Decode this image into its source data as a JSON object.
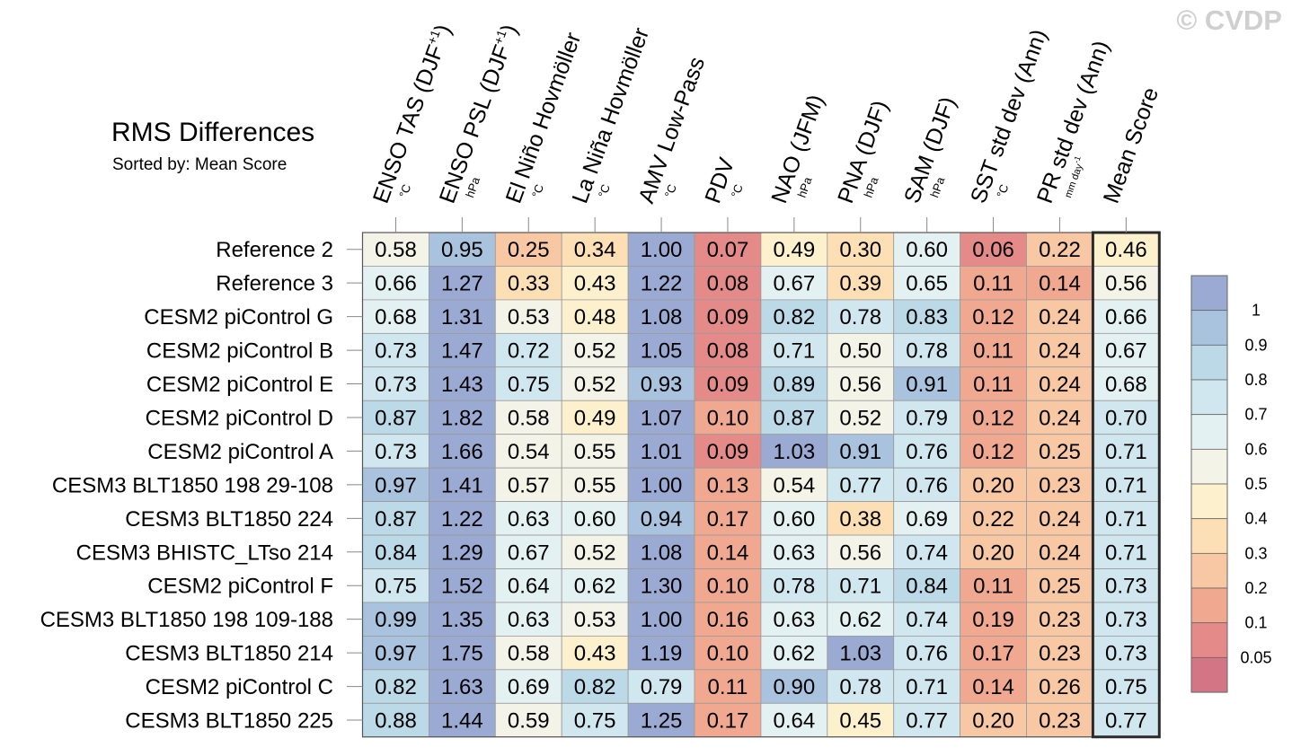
{
  "title": "RMS Differences",
  "subtitle": "Sorted by: Mean Score",
  "watermark": "© CVDP",
  "chart_data": {
    "type": "heatmap",
    "title": "RMS Differences",
    "sort_note": "Sorted by: Mean Score",
    "columns": [
      {
        "label": "ENSO TAS (DJF",
        "sup": "+1",
        "close": ")",
        "unit": "°C"
      },
      {
        "label": "ENSO PSL (DJF",
        "sup": "+1",
        "close": ")",
        "unit": "hPa"
      },
      {
        "label": "El Niño Hovmöller",
        "sup": "",
        "close": "",
        "unit": "°C"
      },
      {
        "label": "La Niña Hovmöller",
        "sup": "",
        "close": "",
        "unit": "°C"
      },
      {
        "label": "AMV Low-Pass",
        "sup": "",
        "close": "",
        "unit": "°C"
      },
      {
        "label": "PDV",
        "sup": "",
        "close": "",
        "unit": "°C"
      },
      {
        "label": "NAO (JFM)",
        "sup": "",
        "close": "",
        "unit": "hPa"
      },
      {
        "label": "PNA (DJF)",
        "sup": "",
        "close": "",
        "unit": "hPa"
      },
      {
        "label": "SAM (DJF)",
        "sup": "",
        "close": "",
        "unit": "hPa"
      },
      {
        "label": "SST std dev (Ann)",
        "sup": "",
        "close": "",
        "unit": "°C"
      },
      {
        "label": "PR std dev (Ann)",
        "sup": "",
        "close": "",
        "unit": "mm day-1"
      },
      {
        "label": "Mean Score",
        "sup": "",
        "close": "",
        "unit": ""
      }
    ],
    "rows": [
      {
        "name": "Reference 2",
        "values": [
          "0.58",
          "0.95",
          "0.25",
          "0.34",
          "1.00",
          "0.07",
          "0.49",
          "0.30",
          "0.60",
          "0.06",
          "0.22",
          "0.46"
        ]
      },
      {
        "name": "Reference 3",
        "values": [
          "0.66",
          "1.27",
          "0.33",
          "0.43",
          "1.22",
          "0.08",
          "0.67",
          "0.39",
          "0.65",
          "0.11",
          "0.14",
          "0.56"
        ]
      },
      {
        "name": "CESM2 piControl G",
        "values": [
          "0.68",
          "1.31",
          "0.53",
          "0.48",
          "1.08",
          "0.09",
          "0.82",
          "0.78",
          "0.83",
          "0.12",
          "0.24",
          "0.66"
        ]
      },
      {
        "name": "CESM2 piControl B",
        "values": [
          "0.73",
          "1.47",
          "0.72",
          "0.52",
          "1.05",
          "0.08",
          "0.71",
          "0.50",
          "0.78",
          "0.11",
          "0.24",
          "0.67"
        ]
      },
      {
        "name": "CESM2 piControl E",
        "values": [
          "0.73",
          "1.43",
          "0.75",
          "0.52",
          "0.93",
          "0.09",
          "0.89",
          "0.56",
          "0.91",
          "0.11",
          "0.24",
          "0.68"
        ]
      },
      {
        "name": "CESM2 piControl D",
        "values": [
          "0.87",
          "1.82",
          "0.58",
          "0.49",
          "1.07",
          "0.10",
          "0.87",
          "0.52",
          "0.79",
          "0.12",
          "0.24",
          "0.70"
        ]
      },
      {
        "name": "CESM2 piControl A",
        "values": [
          "0.73",
          "1.66",
          "0.54",
          "0.55",
          "1.01",
          "0.09",
          "1.03",
          "0.91",
          "0.76",
          "0.12",
          "0.25",
          "0.71"
        ]
      },
      {
        "name": "CESM3 BLT1850 198 29-108",
        "values": [
          "0.97",
          "1.41",
          "0.57",
          "0.55",
          "1.00",
          "0.13",
          "0.54",
          "0.77",
          "0.76",
          "0.20",
          "0.23",
          "0.71"
        ]
      },
      {
        "name": "CESM3 BLT1850 224",
        "values": [
          "0.87",
          "1.22",
          "0.63",
          "0.60",
          "0.94",
          "0.17",
          "0.60",
          "0.38",
          "0.69",
          "0.22",
          "0.24",
          "0.71"
        ]
      },
      {
        "name": "CESM3 BHISTC_LTso 214",
        "values": [
          "0.84",
          "1.29",
          "0.67",
          "0.52",
          "1.08",
          "0.14",
          "0.63",
          "0.56",
          "0.74",
          "0.20",
          "0.24",
          "0.71"
        ]
      },
      {
        "name": "CESM2 piControl F",
        "values": [
          "0.75",
          "1.52",
          "0.64",
          "0.62",
          "1.30",
          "0.10",
          "0.78",
          "0.71",
          "0.84",
          "0.11",
          "0.25",
          "0.73"
        ]
      },
      {
        "name": "CESM3 BLT1850 198 109-188",
        "values": [
          "0.99",
          "1.35",
          "0.63",
          "0.53",
          "1.00",
          "0.16",
          "0.63",
          "0.62",
          "0.74",
          "0.19",
          "0.23",
          "0.73"
        ]
      },
      {
        "name": "CESM3 BLT1850 214",
        "values": [
          "0.97",
          "1.75",
          "0.58",
          "0.43",
          "1.19",
          "0.10",
          "0.62",
          "1.03",
          "0.76",
          "0.17",
          "0.23",
          "0.73"
        ]
      },
      {
        "name": "CESM2 piControl C",
        "values": [
          "0.82",
          "1.63",
          "0.69",
          "0.82",
          "0.79",
          "0.11",
          "0.90",
          "0.78",
          "0.71",
          "0.14",
          "0.26",
          "0.75"
        ]
      },
      {
        "name": "CESM3 BLT1850 225",
        "values": [
          "0.88",
          "1.44",
          "0.59",
          "0.75",
          "1.25",
          "0.17",
          "0.64",
          "0.45",
          "0.77",
          "0.20",
          "0.23",
          "0.77"
        ]
      }
    ],
    "colorbar": {
      "levels": [
        1,
        0.9,
        0.8,
        0.7,
        0.6,
        0.5,
        0.4,
        0.3,
        0.2,
        0.1,
        0.05
      ],
      "tick_labels": [
        "1",
        "0.9",
        "0.8",
        "0.7",
        "0.6",
        "0.5",
        "0.4",
        "0.3",
        "0.2",
        "0.1",
        "0.05"
      ],
      "colors_top_to_bottom": [
        "#9aaad2",
        "#a9c3de",
        "#bcd9e8",
        "#d1e7ef",
        "#e4f1f3",
        "#f3f3e8",
        "#fdf0cc",
        "#fddfb6",
        "#f8c7a3",
        "#f0a990",
        "#e48a88",
        "#d47585"
      ]
    },
    "highlight_column": "Mean Score"
  }
}
